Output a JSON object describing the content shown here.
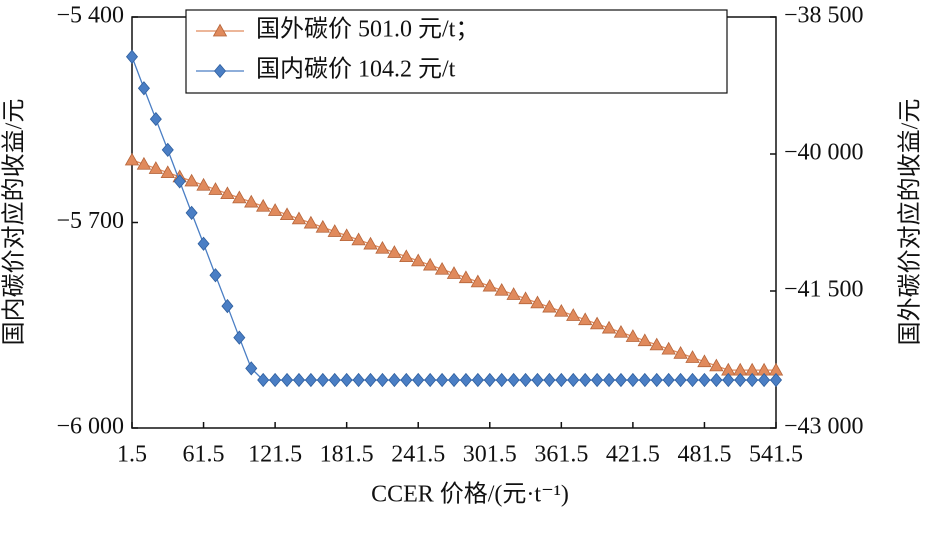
{
  "chart_data": {
    "type": "line",
    "xlabel": "CCER 价格/(元·t⁻¹)",
    "ylabel": "国内碳价对应的收益/元",
    "y2label": "国外碳价对应的收益/元",
    "x": [
      1.5,
      11.5,
      21.5,
      31.5,
      41.5,
      51.5,
      61.5,
      71.5,
      81.5,
      91.5,
      101.5,
      111.5,
      121.5,
      131.5,
      141.5,
      151.5,
      161.5,
      171.5,
      181.5,
      191.5,
      201.5,
      211.5,
      221.5,
      231.5,
      241.5,
      251.5,
      261.5,
      271.5,
      281.5,
      291.5,
      301.5,
      311.5,
      321.5,
      331.5,
      341.5,
      351.5,
      361.5,
      371.5,
      381.5,
      391.5,
      401.5,
      411.5,
      421.5,
      431.5,
      441.5,
      451.5,
      461.5,
      471.5,
      481.5,
      491.5,
      501.5,
      511.5,
      521.5,
      531.5,
      541.5
    ],
    "series": [
      {
        "name": "国外碳价 501.0 元/t；",
        "color": "#e08a5c",
        "marker": "triangle",
        "axis": "y2",
        "values": [
          -40066,
          -40112,
          -40158,
          -40204,
          -40250,
          -40296,
          -40342,
          -40388,
          -40434,
          -40480,
          -40526,
          -40572,
          -40618,
          -40664,
          -40710,
          -40756,
          -40802,
          -40848,
          -40894,
          -40940,
          -40986,
          -41032,
          -41078,
          -41124,
          -41170,
          -41216,
          -41262,
          -41308,
          -41354,
          -41400,
          -41446,
          -41492,
          -41538,
          -41584,
          -41630,
          -41676,
          -41722,
          -41768,
          -41814,
          -41860,
          -41906,
          -41952,
          -41998,
          -42044,
          -42090,
          -42136,
          -42182,
          -42228,
          -42274,
          -42320,
          -42366,
          -42366,
          -42366,
          -42366,
          -42366
        ]
      },
      {
        "name": "国内碳价 104.2 元/t",
        "color": "#4a7ec4",
        "marker": "diamond",
        "axis": "y",
        "values": [
          -5458,
          -5504,
          -5549,
          -5594,
          -5640,
          -5686,
          -5731,
          -5777,
          -5822,
          -5868,
          -5913,
          -5930,
          -5930,
          -5930,
          -5930,
          -5930,
          -5930,
          -5930,
          -5930,
          -5930,
          -5930,
          -5930,
          -5930,
          -5930,
          -5930,
          -5930,
          -5930,
          -5930,
          -5930,
          -5930,
          -5930,
          -5930,
          -5930,
          -5930,
          -5930,
          -5930,
          -5930,
          -5930,
          -5930,
          -5930,
          -5930,
          -5930,
          -5930,
          -5930,
          -5930,
          -5930,
          -5930,
          -5930,
          -5930,
          -5930,
          -5930,
          -5930,
          -5930,
          -5930,
          -5930
        ]
      }
    ],
    "xlim": [
      1.5,
      541.5
    ],
    "xticks": [
      1.5,
      61.5,
      121.5,
      181.5,
      241.5,
      301.5,
      361.5,
      421.5,
      481.5,
      541.5
    ],
    "ylim": [
      -6000,
      -5400
    ],
    "yticks": [
      {
        "value": -6000,
        "label": "−6 000"
      },
      {
        "value": -5700,
        "label": "−5 700"
      },
      {
        "value": -5400,
        "label": "−5 400"
      }
    ],
    "y2lim": [
      -43000,
      -38500
    ],
    "y2ticks": [
      {
        "value": -43000,
        "label": "−43 000"
      },
      {
        "value": -41500,
        "label": "−41 500"
      },
      {
        "value": -40000,
        "label": "−40 000"
      },
      {
        "value": -38500,
        "label": "−38 500"
      }
    ],
    "legend": "top"
  }
}
